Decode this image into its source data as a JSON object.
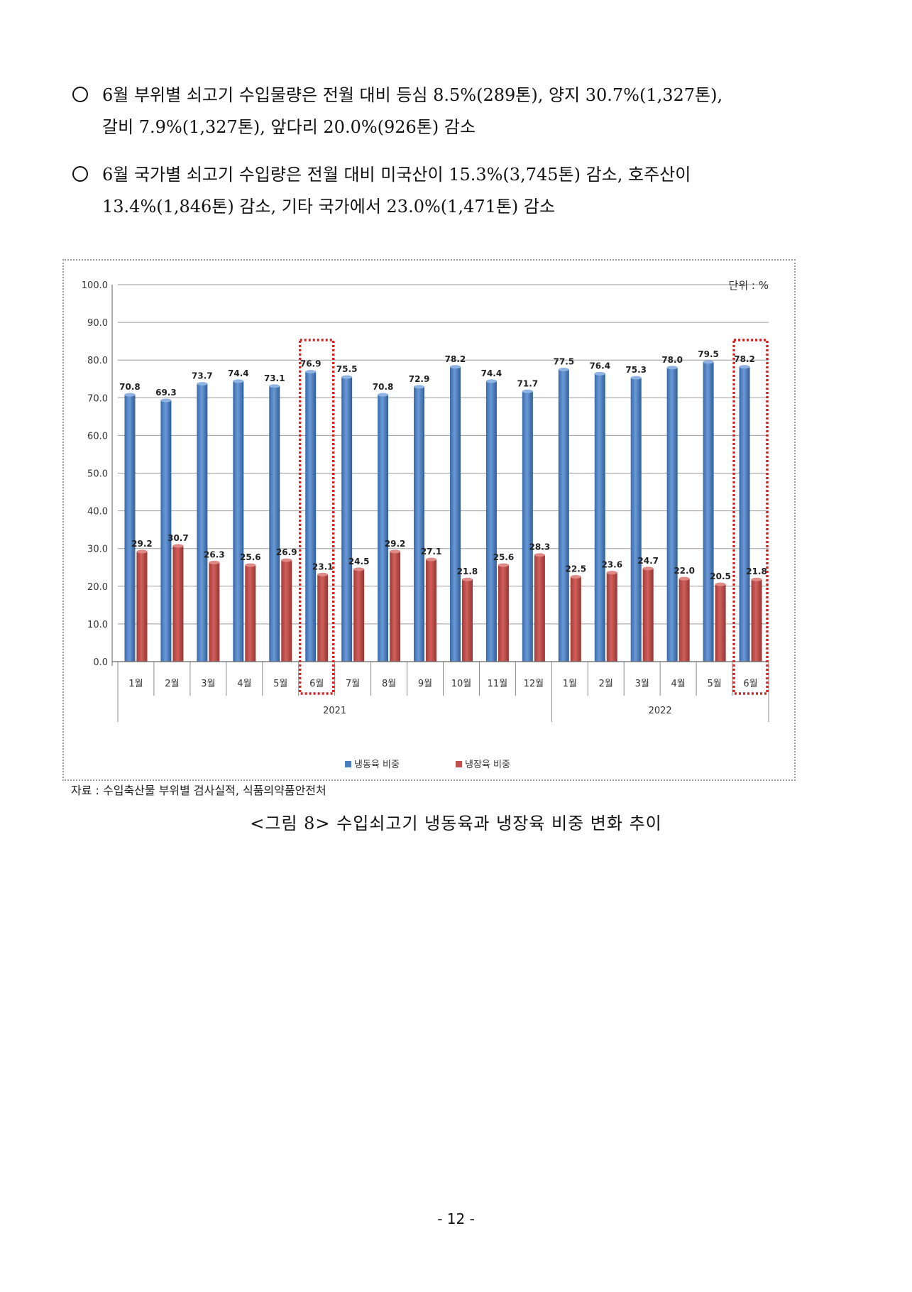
{
  "bullets": [
    {
      "line1": "6월 부위별 쇠고기 수입물량은 전월 대비 등심 8.5%(289톤), 양지 30.7%(1,327톤),",
      "line2": "갈비 7.9%(1,327톤), 앞다리 20.0%(926톤) 감소"
    },
    {
      "line1": "6월 국가별 쇠고기 수입량은 전월 대비 미국산이 15.3%(3,745톤) 감소, 호주산이",
      "line2": "13.4%(1,846톤) 감소, 기타 국가에서 23.0%(1,471톤) 감소"
    }
  ],
  "chart_data": {
    "type": "bar",
    "unit_label": "단위 : %",
    "categories": [
      "1월",
      "2월",
      "3월",
      "4월",
      "5월",
      "6월",
      "7월",
      "8월",
      "9월",
      "10월",
      "11월",
      "12월",
      "1월",
      "2월",
      "3월",
      "4월",
      "5월",
      "6월"
    ],
    "year_groups": [
      {
        "label": "2021",
        "start": 0,
        "end": 11
      },
      {
        "label": "2022",
        "start": 12,
        "end": 17
      }
    ],
    "series": [
      {
        "name": "냉동육 비중",
        "color": "#4a7ebf",
        "values": [
          70.8,
          69.3,
          73.7,
          74.4,
          73.1,
          76.9,
          75.5,
          70.8,
          72.9,
          78.2,
          74.4,
          71.7,
          77.5,
          76.4,
          75.3,
          78.0,
          79.5,
          78.2
        ]
      },
      {
        "name": "냉장육 비중",
        "color": "#c0504d",
        "values": [
          29.2,
          30.7,
          26.3,
          25.6,
          26.9,
          23.1,
          24.5,
          29.2,
          27.1,
          21.8,
          25.6,
          28.3,
          22.5,
          23.6,
          24.7,
          22.0,
          20.5,
          21.8
        ]
      }
    ],
    "ylim": [
      0,
      100
    ],
    "yticks": [
      "0.0",
      "10.0",
      "20.0",
      "30.0",
      "40.0",
      "50.0",
      "60.0",
      "70.0",
      "80.0",
      "90.0",
      "100.0"
    ],
    "highlighted": [
      5,
      17
    ],
    "grid": true,
    "legend_position": "bottom"
  },
  "source": "자료 : 수입축산물 부위별 검사실적, 식품의약품안전처",
  "caption": "<그림 8> 수입쇠고기 냉동육과 냉장육 비중 변화 추이",
  "page_number": "- 12 -"
}
